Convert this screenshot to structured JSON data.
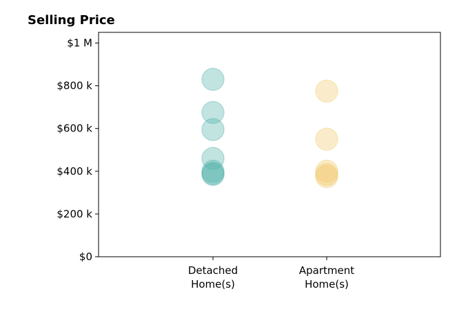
{
  "chart_data": {
    "type": "scatter",
    "title": "Selling Price",
    "xlabel": "",
    "ylabel": "",
    "categories": [
      "Detached\nHome(s)",
      "Apartment\nHome(s)"
    ],
    "ylim": [
      0,
      1050000
    ],
    "yticks": [
      0,
      200000,
      400000,
      600000,
      800000,
      1000000
    ],
    "ytick_labels": [
      "$0",
      "$200 k",
      "$400 k",
      "$600 k",
      "$800 k",
      "$1 M"
    ],
    "grid": false,
    "legend": "none",
    "series": [
      {
        "category": "Detached\nHome(s)",
        "color": "#4fb3a9",
        "values": [
          830000,
          675000,
          595000,
          460000,
          400000,
          390000,
          385000
        ]
      },
      {
        "category": "Apartment\nHome(s)",
        "color": "#f0c96a",
        "values": [
          775000,
          550000,
          400000,
          385000,
          375000
        ]
      }
    ]
  }
}
